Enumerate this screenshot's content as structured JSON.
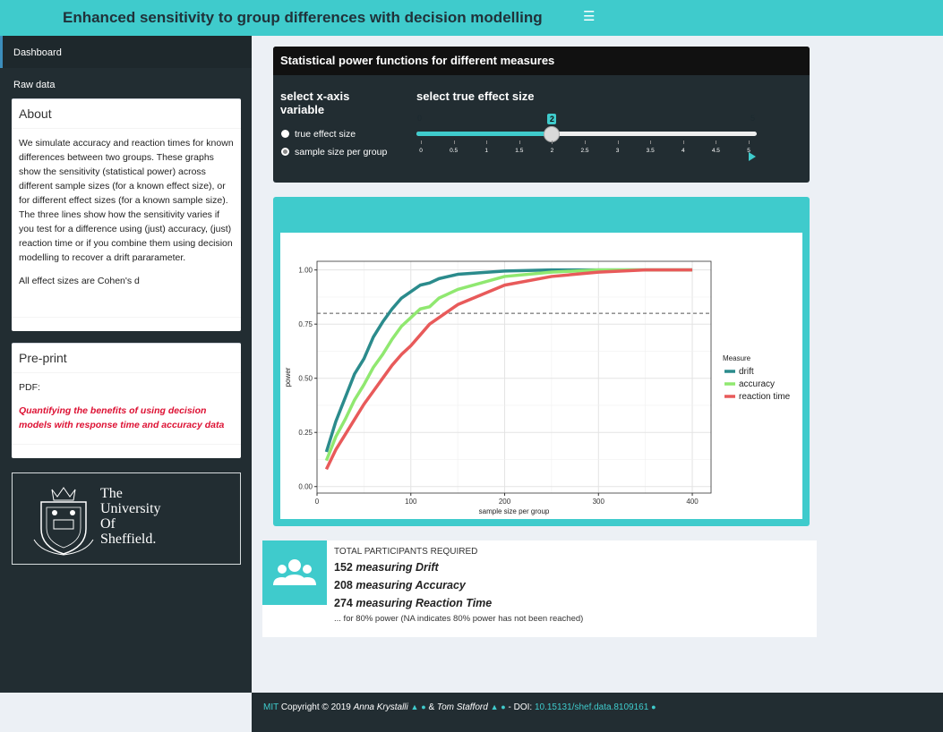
{
  "header": {
    "title": "Enhanced sensitivity to group differences with decision modelling",
    "menu_icon": "hamburger-icon"
  },
  "sidebar": {
    "items": [
      {
        "label": "Dashboard",
        "active": true
      },
      {
        "label": "Raw data",
        "active": false
      }
    ],
    "about": {
      "title": "About",
      "paragraph": "We simulate accuracy and reaction times for known differences between two groups. These graphs show the sensitivity (statistical power) across different sample sizes (for a known effect size), or for different effect sizes (for a known sample size). The three lines show how the sensitivity varies if you test for a difference using (just) accuracy, (just) reaction time or if you combine them using decision modelling to recover a drift pararameter.",
      "note": "All effect sizes are Cohen's d"
    },
    "preprint": {
      "title": "Pre-print",
      "pdf_label": "PDF:",
      "link_text": "Quantifying the benefits of using decision models with response time and accuracy data"
    },
    "logo": {
      "line1": "The",
      "line2": "University",
      "line3": "Of",
      "line4": "Sheffield."
    }
  },
  "controls": {
    "title": "Statistical power functions for different measures",
    "xaxis_label": "select x-axis variable",
    "radio_options": [
      {
        "label": "true effect size",
        "selected": false
      },
      {
        "label": "sample size per group",
        "selected": true
      }
    ],
    "slider": {
      "label": "select true effect size",
      "min": 0,
      "max": 5,
      "value": 2,
      "value_label": "2",
      "min_label": "0",
      "max_label": "5",
      "ticks": [
        "0",
        "0.5",
        "1",
        "1.5",
        "2",
        "2.5",
        "3",
        "3.5",
        "4",
        "4.5",
        "5"
      ]
    }
  },
  "chart_data": {
    "type": "line",
    "xlabel": "sample size per group",
    "ylabel": "power",
    "xlim": [
      0,
      420
    ],
    "ylim": [
      -0.03,
      1.04
    ],
    "xticks": [
      "0",
      "100",
      "200",
      "300",
      "400"
    ],
    "yticks": [
      "0.00",
      "0.25",
      "0.50",
      "0.75",
      "1.00"
    ],
    "grid": true,
    "legend_title": "Measure",
    "legend_placement": "right",
    "reference_line": 0.8,
    "x": [
      10,
      20,
      30,
      40,
      50,
      60,
      70,
      80,
      90,
      100,
      110,
      120,
      130,
      140,
      150,
      200,
      250,
      300,
      350,
      400
    ],
    "series": [
      {
        "name": "drift",
        "color": "#2b8b8c",
        "values": [
          0.16,
          0.3,
          0.41,
          0.52,
          0.59,
          0.69,
          0.76,
          0.82,
          0.87,
          0.9,
          0.93,
          0.94,
          0.96,
          0.97,
          0.98,
          0.995,
          1.0,
          1.0,
          1.0,
          1.0
        ]
      },
      {
        "name": "accuracy",
        "color": "#90e870",
        "values": [
          0.12,
          0.23,
          0.31,
          0.4,
          0.47,
          0.55,
          0.61,
          0.68,
          0.74,
          0.78,
          0.82,
          0.83,
          0.87,
          0.89,
          0.91,
          0.97,
          0.99,
          1.0,
          1.0,
          1.0
        ]
      },
      {
        "name": "reaction time",
        "color": "#e85a5a",
        "values": [
          0.08,
          0.17,
          0.24,
          0.31,
          0.38,
          0.44,
          0.5,
          0.56,
          0.61,
          0.65,
          0.7,
          0.75,
          0.78,
          0.81,
          0.84,
          0.93,
          0.97,
          0.99,
          1.0,
          1.0
        ]
      }
    ]
  },
  "info": {
    "icon": "users-icon",
    "heading": "TOTAL PARTICIPANTS REQUIRED",
    "rows": [
      {
        "num": "152",
        "text": "measuring Drift"
      },
      {
        "num": "208",
        "text": "measuring Accuracy"
      },
      {
        "num": "274",
        "text": "measuring Reaction Time"
      }
    ],
    "note": "... for 80% power (NA indicates 80% power has not been reached)"
  },
  "footer": {
    "mit": "MIT",
    "copyright": "Copyright",
    "year": "2019",
    "author1": "Anna Krystalli",
    "amp": "&",
    "author2": "Tom Stafford",
    "doi_label": "- DOI:",
    "doi": "10.15131/shef.data.8109161"
  },
  "colors": {
    "accent": "#3fcbcc",
    "sidebar": "#222d32",
    "link_red": "#dd1133"
  }
}
